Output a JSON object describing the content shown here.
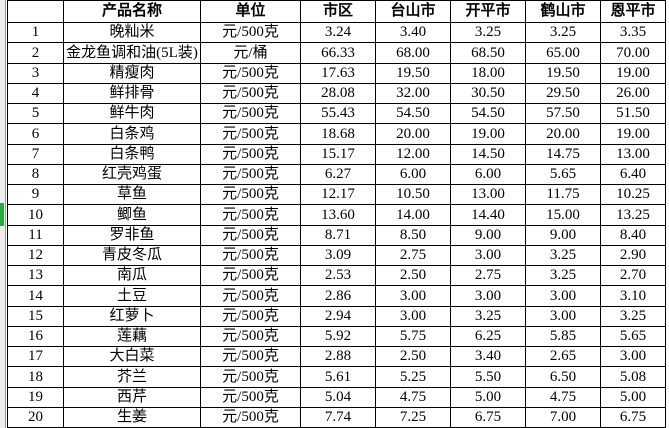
{
  "table": {
    "columns": [
      "",
      "产品名称",
      "单位",
      "市区",
      "台山市",
      "开平市",
      "鹤山市",
      "恩平市"
    ],
    "rows": [
      {
        "no": "1",
        "name": "晚籼米",
        "unit": "元/500克",
        "prices": [
          "3.24",
          "3.40",
          "3.25",
          "3.25",
          "3.35"
        ]
      },
      {
        "no": "2",
        "name": "金龙鱼调和油(5L装)",
        "unit": "元/桶",
        "prices": [
          "66.33",
          "68.00",
          "68.50",
          "65.00",
          "70.00"
        ]
      },
      {
        "no": "3",
        "name": "精瘦肉",
        "unit": "元/500克",
        "prices": [
          "17.63",
          "19.50",
          "18.00",
          "19.50",
          "19.00"
        ]
      },
      {
        "no": "4",
        "name": "鲜排骨",
        "unit": "元/500克",
        "prices": [
          "28.08",
          "32.00",
          "30.50",
          "29.50",
          "26.00"
        ]
      },
      {
        "no": "5",
        "name": "鲜牛肉",
        "unit": "元/500克",
        "prices": [
          "55.43",
          "54.50",
          "54.50",
          "57.50",
          "51.50"
        ]
      },
      {
        "no": "6",
        "name": "白条鸡",
        "unit": "元/500克",
        "prices": [
          "18.68",
          "20.00",
          "19.00",
          "20.00",
          "19.00"
        ]
      },
      {
        "no": "7",
        "name": "白条鸭",
        "unit": "元/500克",
        "prices": [
          "15.17",
          "12.00",
          "14.50",
          "14.75",
          "13.00"
        ]
      },
      {
        "no": "8",
        "name": "红壳鸡蛋",
        "unit": "元/500克",
        "prices": [
          "6.27",
          "6.00",
          "6.00",
          "5.65",
          "6.40"
        ]
      },
      {
        "no": "9",
        "name": "草鱼",
        "unit": "元/500克",
        "prices": [
          "12.17",
          "10.50",
          "13.00",
          "11.75",
          "10.25"
        ]
      },
      {
        "no": "10",
        "name": "鲫鱼",
        "unit": "元/500克",
        "prices": [
          "13.60",
          "14.00",
          "14.40",
          "15.00",
          "13.25"
        ]
      },
      {
        "no": "11",
        "name": "罗非鱼",
        "unit": "元/500克",
        "prices": [
          "8.71",
          "8.50",
          "9.00",
          "9.00",
          "8.40"
        ]
      },
      {
        "no": "12",
        "name": "青皮冬瓜",
        "unit": "元/500克",
        "prices": [
          "3.09",
          "2.75",
          "3.00",
          "3.25",
          "2.90"
        ]
      },
      {
        "no": "13",
        "name": "南瓜",
        "unit": "元/500克",
        "prices": [
          "2.53",
          "2.50",
          "2.75",
          "3.25",
          "2.70"
        ]
      },
      {
        "no": "14",
        "name": "土豆",
        "unit": "元/500克",
        "prices": [
          "2.86",
          "3.00",
          "3.00",
          "3.00",
          "3.10"
        ]
      },
      {
        "no": "15",
        "name": "红萝卜",
        "unit": "元/500克",
        "prices": [
          "2.94",
          "3.00",
          "3.25",
          "3.00",
          "3.25"
        ]
      },
      {
        "no": "16",
        "name": "莲藕",
        "unit": "元/500克",
        "prices": [
          "5.92",
          "5.75",
          "6.25",
          "5.85",
          "5.65"
        ]
      },
      {
        "no": "17",
        "name": "大白菜",
        "unit": "元/500克",
        "prices": [
          "2.88",
          "2.50",
          "3.40",
          "2.65",
          "3.00"
        ]
      },
      {
        "no": "18",
        "name": "芥兰",
        "unit": "元/500克",
        "prices": [
          "5.61",
          "5.25",
          "5.50",
          "6.50",
          "5.08"
        ]
      },
      {
        "no": "19",
        "name": "西芹",
        "unit": "元/500克",
        "prices": [
          "5.04",
          "4.75",
          "5.00",
          "4.75",
          "5.00"
        ]
      },
      {
        "no": "20",
        "name": "生姜",
        "unit": "元/500克",
        "prices": [
          "7.74",
          "7.25",
          "6.75",
          "7.00",
          "6.75"
        ]
      }
    ]
  },
  "selection": {
    "marked_row_number": "10"
  },
  "colors": {
    "grid_border": "#000000",
    "row_marker_green": "#2ba843",
    "gutter_gray": "#ededed",
    "background": "#ffffff",
    "text": "#000000"
  }
}
